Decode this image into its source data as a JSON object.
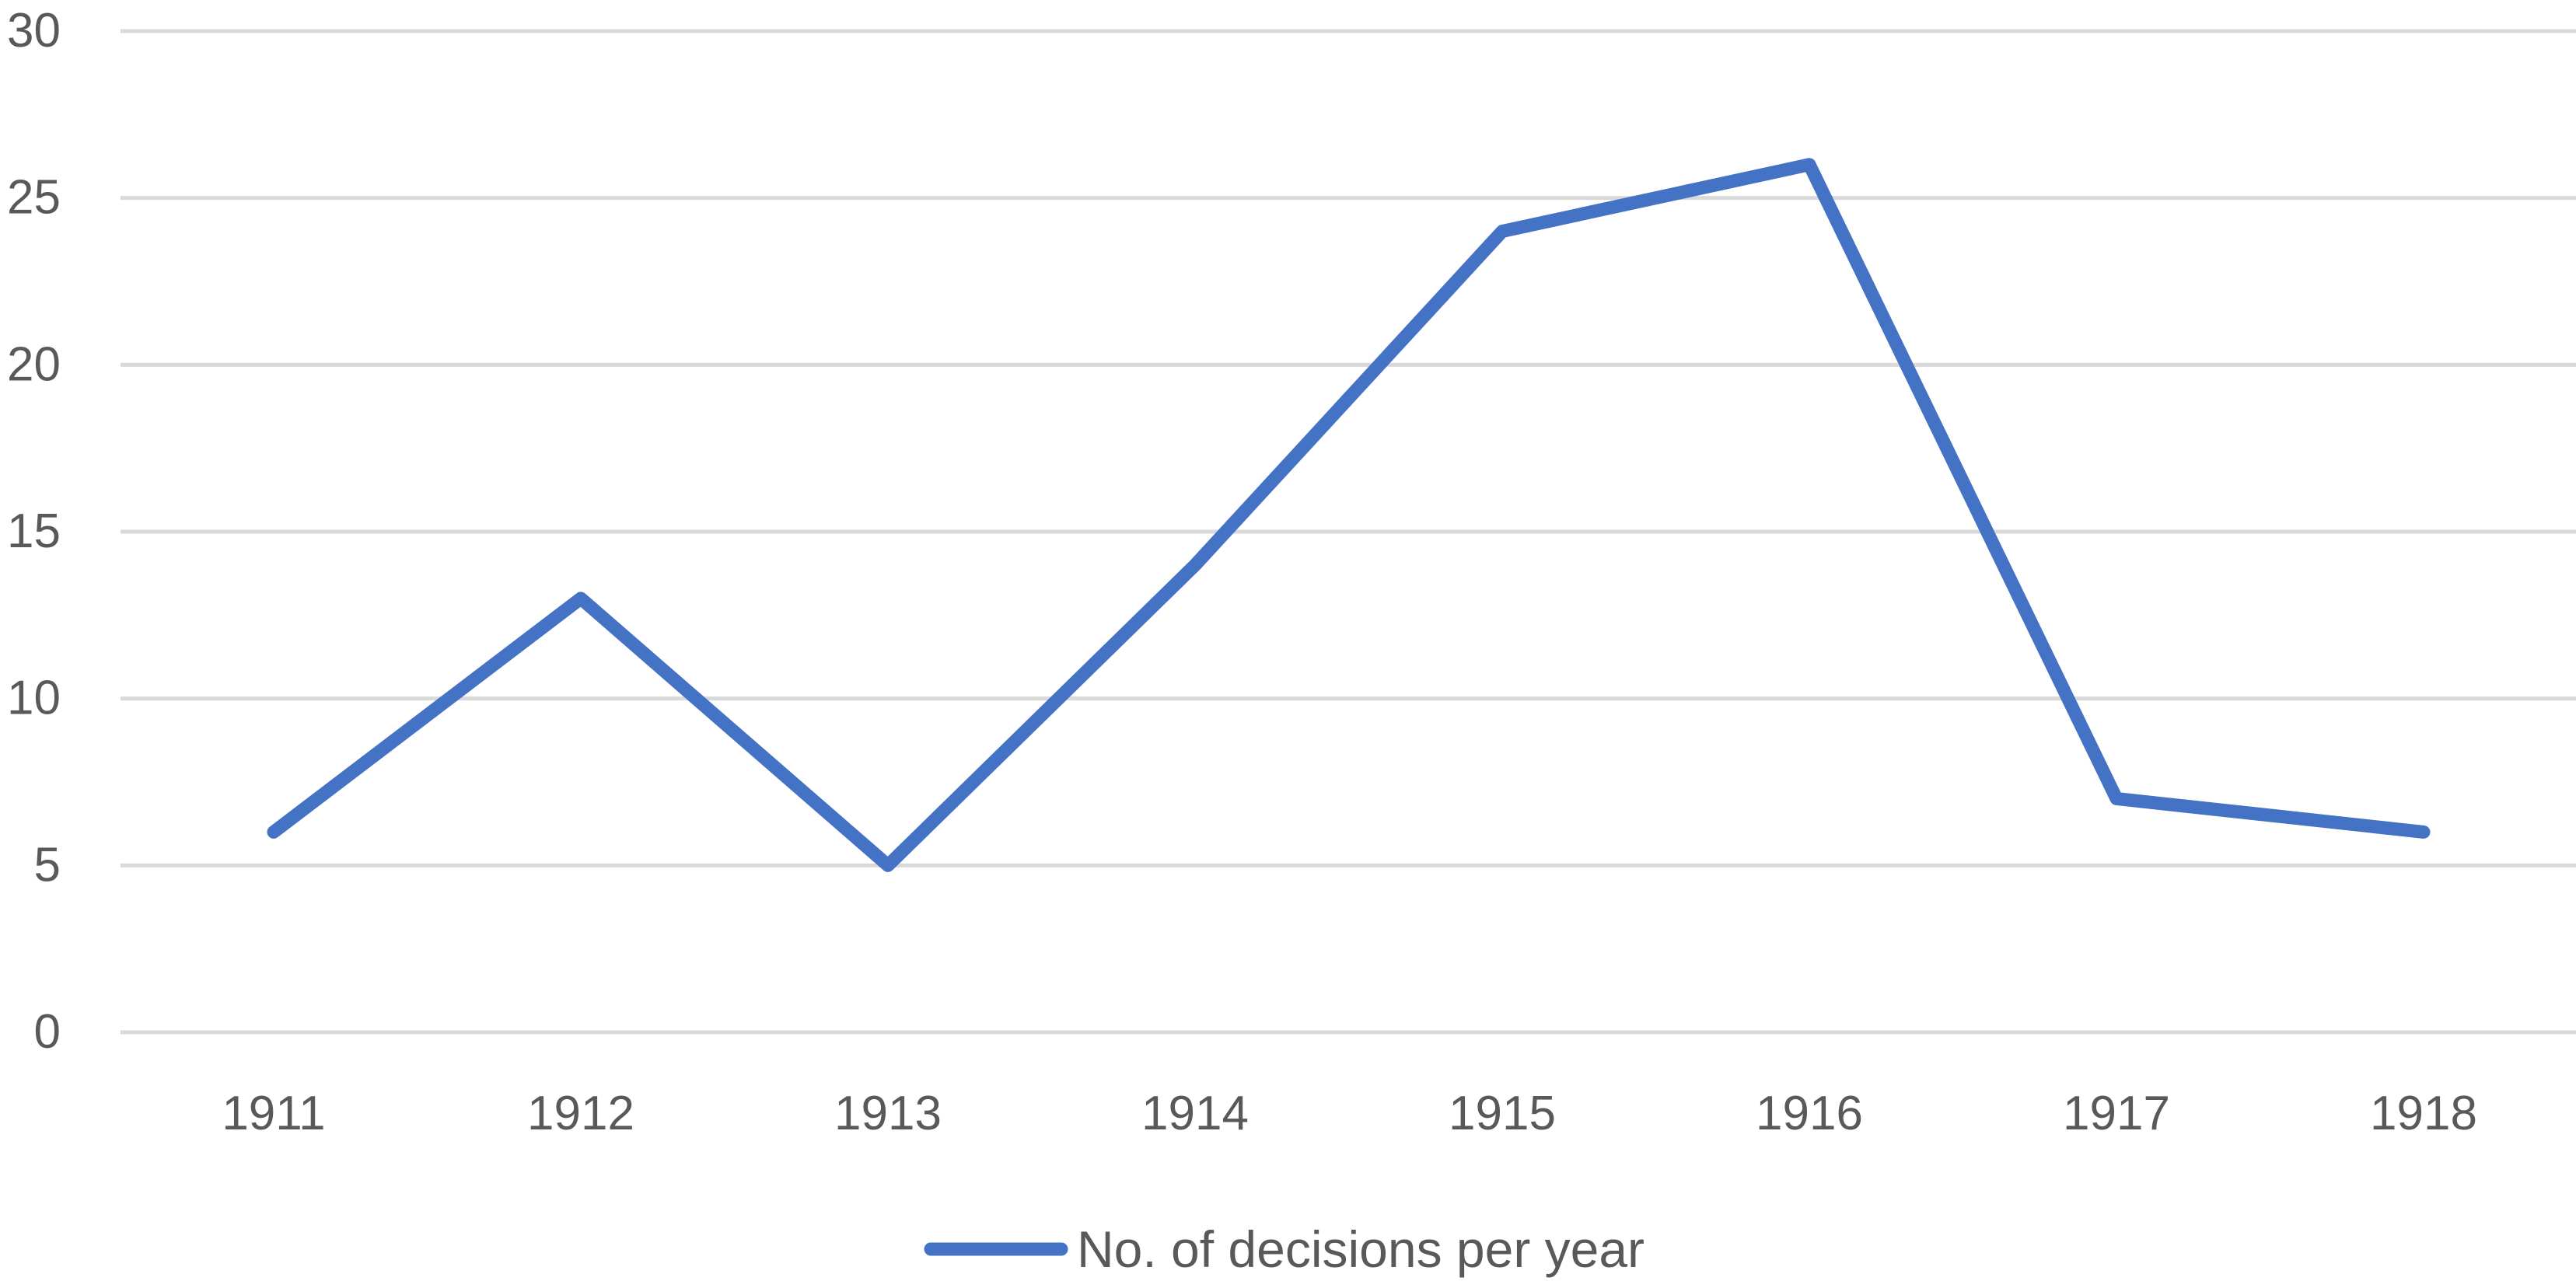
{
  "chart_data": {
    "type": "line",
    "title": "",
    "xlabel": "",
    "ylabel": "",
    "categories": [
      "1911",
      "1912",
      "1913",
      "1914",
      "1915",
      "1916",
      "1917",
      "1918"
    ],
    "series": [
      {
        "name": "No. of decisions per year",
        "values": [
          6,
          13,
          5,
          14,
          24,
          26,
          7,
          6
        ],
        "color": "#4472c4"
      }
    ],
    "ylim": [
      0,
      30
    ],
    "yticks": [
      0,
      5,
      10,
      15,
      20,
      25,
      30
    ],
    "grid": true,
    "legend": "bottom-center"
  }
}
